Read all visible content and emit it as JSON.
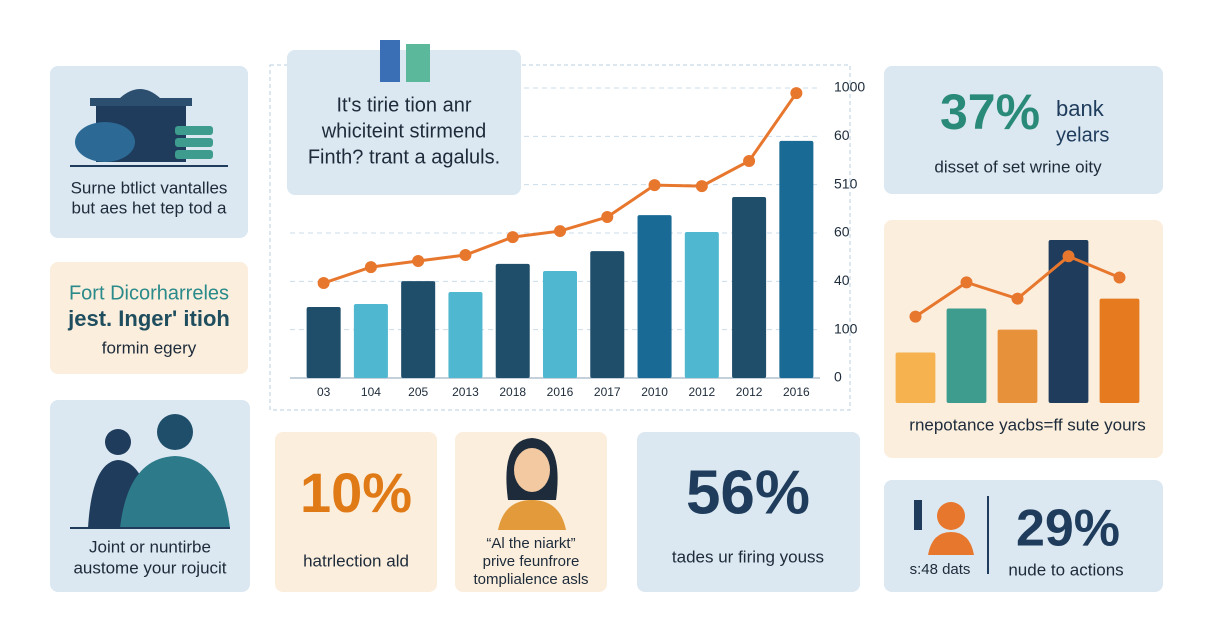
{
  "cards": {
    "bank": {
      "lines": [
        "Surne btlict vantalles",
        "but aes het tep tod a"
      ]
    },
    "fort": {
      "lines": [
        "Fort Dicorharreles",
        "jest. Inger' itioh",
        "formin egery"
      ]
    },
    "joint": {
      "lines": [
        "Joint or nuntirbe",
        "austome your rojucit"
      ]
    },
    "ten": {
      "big": "10%",
      "lines": [
        "hatrlection ald"
      ]
    },
    "quote": {
      "lines": [
        "“Al the niarkt”",
        "prive feunfrore",
        "tomplialence asls"
      ]
    },
    "fiftysix": {
      "big": "56%",
      "lines": [
        "tades ur firing youss"
      ]
    },
    "thirtyseven": {
      "big": "37%",
      "side": [
        "bank",
        "yelars"
      ],
      "lines": [
        "disset of set wrine oity"
      ]
    },
    "twentynine": {
      "big": "29%",
      "left": "s:48 dats",
      "lines": [
        "nude to actions"
      ]
    },
    "headline": {
      "lines": [
        "It's tirie tion anr",
        "whiciteint stirmend",
        "Finth? trant a agaluls."
      ]
    }
  },
  "chart_data": [
    {
      "type": "combo",
      "categories": [
        "03",
        "104",
        "205",
        "2013",
        "2018",
        "2016",
        "2017",
        "2010",
        "2012",
        "2012",
        "2016"
      ],
      "ylim": [
        0,
        1200
      ],
      "yticks": [
        0,
        {
          "value": 200,
          "label": "100"
        },
        {
          "value": 400,
          "label": "40"
        },
        {
          "value": 600,
          "label": "60"
        },
        {
          "value": 800,
          "label": "510"
        },
        {
          "value": 1000,
          "label": "60"
        },
        {
          "value": 1200,
          "label": "1000"
        }
      ],
      "grid": true,
      "series": [
        {
          "type": "bar",
          "colors": [
            "#1f4e6b",
            "#4fb8d0",
            "#1f4e6b",
            "#4fb8d0",
            "#1f4e6b",
            "#4fb8d0",
            "#1f4e6b",
            "#1a6a96",
            "#4fb8d0",
            "#1f4e6b",
            "#1a6a96"
          ],
          "values": [
            294,
            306,
            401,
            356,
            472,
            443,
            525,
            674,
            604,
            749,
            981
          ]
        },
        {
          "type": "line",
          "color": "#e8772e",
          "values": [
            393,
            459,
            484,
            509,
            583,
            608,
            666,
            798,
            794,
            898,
            1179
          ]
        }
      ]
    },
    {
      "type": "combo",
      "caption": "rnepotance yacbs=ff sute yours",
      "ylim": [
        0,
        100
      ],
      "series": [
        {
          "type": "bar",
          "colors": [
            "#f5b24f",
            "#3d9c8e",
            "#e8913b",
            "#1f3c5c",
            "#e67a1f"
          ],
          "values": [
            31,
            58,
            45,
            100,
            64
          ]
        },
        {
          "type": "line",
          "color": "#e8772e",
          "values": [
            53,
            74,
            64,
            90,
            77
          ]
        }
      ]
    }
  ]
}
